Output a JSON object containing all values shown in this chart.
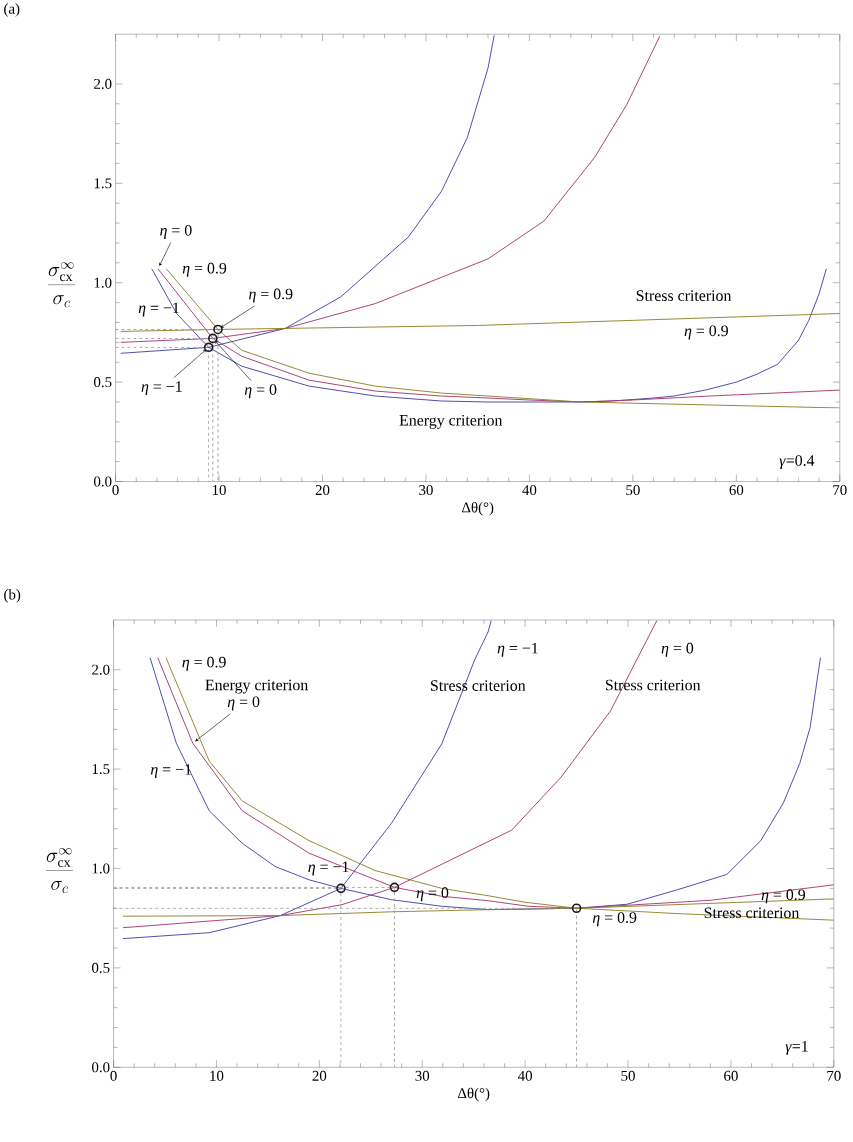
{
  "chart_data": [
    {
      "type": "line",
      "title": "(a)",
      "xlabel": "Δθ(°)",
      "ylabel": "\\frac{\\sigma_{\\mathrm{cx}}^{\\infty}}{\\sigma_{c}}",
      "xlim": [
        0,
        70
      ],
      "ylim": [
        0,
        2.25
      ],
      "xticks": [
        0,
        10,
        20,
        30,
        40,
        50,
        60,
        70
      ],
      "yticks": [
        {
          "value": 0,
          "label": "0.0"
        },
        {
          "value": 0.5,
          "label": "0.5"
        },
        {
          "value": 1,
          "label": "1.0"
        },
        {
          "value": 1.5,
          "label": "1.5"
        },
        {
          "value": 2,
          "label": "2.0"
        }
      ],
      "series": [
        {
          "color": "#3b3ba6",
          "x": [
            3.5,
            5.9,
            9.0,
            12.2,
            18.7,
            25.1,
            31.5,
            36,
            45,
            48,
            52,
            54,
            57,
            60,
            62,
            64,
            66,
            67,
            68,
            68.7
          ],
          "values": [
            1.07,
            0.845,
            0.675,
            0.58,
            0.48,
            0.43,
            0.405,
            0.4,
            0.4,
            0.405,
            0.42,
            0.43,
            0.46,
            0.5,
            0.54,
            0.59,
            0.71,
            0.81,
            0.945,
            1.07
          ]
        },
        {
          "color": "#a3306a",
          "x": [
            4.1,
            9.4,
            12.2,
            18.7,
            25.1,
            31.5,
            36,
            40,
            45,
            50,
            57.4,
            70
          ],
          "values": [
            1.07,
            0.72,
            0.63,
            0.51,
            0.455,
            0.43,
            0.42,
            0.41,
            0.4,
            0.41,
            0.43,
            0.46
          ]
        },
        {
          "color": "#8c7b1f",
          "x": [
            4.9,
            9.9,
            12.2,
            18.7,
            25.1,
            31.5,
            36,
            45,
            57.4,
            70
          ],
          "values": [
            1.07,
            0.765,
            0.66,
            0.545,
            0.48,
            0.445,
            0.43,
            0.4,
            0.385,
            0.37
          ]
        },
        {
          "color": "#3b3ba6",
          "x": [
            0.5,
            9.0,
            16.4,
            21.8,
            28.3,
            31.5,
            34,
            36,
            36.6
          ],
          "values": [
            0.645,
            0.675,
            0.77,
            0.93,
            1.23,
            1.46,
            1.73,
            2.08,
            2.245
          ]
        },
        {
          "color": "#a3306a",
          "x": [
            0.5,
            9.4,
            16.4,
            25.1,
            36,
            41.4,
            46.3,
            49.4,
            52.6
          ],
          "values": [
            0.7,
            0.72,
            0.77,
            0.895,
            1.12,
            1.31,
            1.63,
            1.895,
            2.24
          ]
        },
        {
          "color": "#8c7b1f",
          "x": [
            0.5,
            9.9,
            35,
            70
          ],
          "values": [
            0.755,
            0.765,
            0.785,
            0.845
          ]
        },
        {
          "line_style": "dashed",
          "color": "#999999",
          "x": [
            0,
            9.0,
            9.0
          ],
          "values": [
            0.675,
            0.675,
            0
          ]
        },
        {
          "line_style": "dashed",
          "color": "#999999",
          "x": [
            0,
            9.4,
            9.4
          ],
          "values": [
            0.72,
            0.72,
            0
          ]
        },
        {
          "line_style": "dashed",
          "color": "#999999",
          "x": [
            0,
            9.9,
            9.9
          ],
          "values": [
            0.765,
            0.765,
            0
          ]
        },
        {
          "type": "scatter",
          "marker": "circle",
          "color": "#1a1a1a",
          "x": [
            9.0,
            9.4,
            9.9
          ],
          "values": [
            0.675,
            0.72,
            0.765
          ]
        }
      ],
      "annotations": [
        {
          "text": "*η* = 0",
          "x": 4.1,
          "y": 1.07
        },
        "*η* = 0.9",
        "*η* = −1",
        {
          "text": "*η* = 0.9",
          "x": 9.9,
          "y": 0.765
        },
        {
          "text": "*η* = −1",
          "x": 9.0,
          "y": 0.675
        },
        {
          "text": "*η* = 0",
          "x": 9.4,
          "y": 0.72
        },
        "Energy criterion",
        "Stress criterion",
        "*η* = 0.9",
        "*γ*=0.4"
      ]
    },
    {
      "type": "line",
      "title": "(b)",
      "xlabel": "Δθ(°)",
      "ylabel": "\\frac{\\sigma_{\\mathrm{cx}}^{\\infty}}{\\sigma_{c}}",
      "xlim": [
        0,
        70
      ],
      "ylim": [
        0,
        2.25
      ],
      "xticks": [
        0,
        10,
        20,
        30,
        40,
        50,
        60,
        70
      ],
      "yticks": [
        {
          "value": 0,
          "label": "0.0"
        },
        {
          "value": 0.5,
          "label": "0.5"
        },
        {
          "value": 1,
          "label": "1.0"
        },
        {
          "value": 1.5,
          "label": "1.5"
        },
        {
          "value": 2,
          "label": "2.0"
        }
      ],
      "series": [
        {
          "color": "#3b3ba6",
          "x": [
            3.55,
            6.1,
            9.3,
            12.5,
            15.7,
            19,
            22.1,
            27,
            31.9,
            36.4,
            45,
            49.9,
            54.8,
            59.6,
            62.9,
            65.1,
            66.7,
            67.7,
            68.7
          ],
          "values": [
            2.06,
            1.63,
            1.29,
            1.127,
            1.01,
            0.943,
            0.9,
            0.843,
            0.81,
            0.793,
            0.8,
            0.82,
            0.893,
            0.97,
            1.14,
            1.33,
            1.53,
            1.71,
            2.06
          ]
        },
        {
          "color": "#a3306a",
          "x": [
            4.3,
            7.7,
            12.5,
            19,
            27.3,
            31.9,
            36.4,
            40.3,
            45,
            58,
            70
          ],
          "values": [
            2.06,
            1.63,
            1.29,
            1.077,
            0.905,
            0.86,
            0.838,
            0.81,
            0.8,
            0.84,
            0.918
          ]
        },
        {
          "color": "#8c7b1f",
          "x": [
            5.1,
            9.3,
            12.5,
            19,
            25.4,
            31.9,
            36.4,
            40,
            45,
            54.8,
            70
          ],
          "values": [
            2.06,
            1.54,
            1.34,
            1.14,
            0.99,
            0.9,
            0.863,
            0.83,
            0.8,
            0.773,
            0.74
          ]
        },
        {
          "color": "#3b3ba6",
          "x": [
            0.9,
            9.3,
            16.2,
            22.1,
            27,
            31.9,
            35.1,
            36.4,
            36.7
          ],
          "values": [
            0.647,
            0.677,
            0.763,
            0.9,
            1.227,
            1.627,
            2.05,
            2.19,
            2.247
          ]
        },
        {
          "color": "#a3306a",
          "x": [
            0.9,
            16.2,
            22.2,
            27.3,
            36.4,
            38.7,
            43.5,
            48.3,
            52.8
          ],
          "values": [
            0.702,
            0.763,
            0.818,
            0.905,
            1.135,
            1.193,
            1.46,
            1.793,
            2.247
          ]
        },
        {
          "color": "#8c7b1f",
          "x": [
            0.9,
            16.2,
            27,
            36.4,
            45,
            70
          ],
          "values": [
            0.76,
            0.763,
            0.782,
            0.793,
            0.8,
            0.847
          ]
        },
        {
          "line_style": "dashed",
          "color": "#999999",
          "x": [
            0,
            22.1,
            22.1
          ],
          "values": [
            0.9,
            0.9,
            0
          ]
        },
        {
          "line_style": "dashed",
          "color": "#999999",
          "x": [
            0,
            27.3,
            27.3
          ],
          "values": [
            0.905,
            0.905,
            0
          ]
        },
        {
          "line_style": "dashed",
          "color": "#999999",
          "x": [
            0,
            45,
            45
          ],
          "values": [
            0.8,
            0.8,
            0
          ]
        },
        {
          "type": "scatter",
          "marker": "circle",
          "color": "#1a1a1a",
          "x": [
            22.1,
            27.3,
            45
          ],
          "values": [
            0.9,
            0.905,
            0.8
          ]
        }
      ],
      "annotations": [
        "*η* = 0.9",
        "Energy criterion",
        {
          "text": "*η* = 0",
          "x": 7.7,
          "y": 1.63
        },
        "*η* = −1",
        "*η* = −1",
        "*η* = 0",
        "Stress criterion",
        "Stress criterion",
        "*η* = −1",
        "*η* = 0",
        "*η* = 0.9",
        {
          "text": "*η* = 0.9",
          "x": 65.1,
          "y": 0.86
        },
        {
          "text": "Stress criterion",
          "x": 62.0,
          "y": 0.777
        },
        "*γ*=1"
      ]
    }
  ]
}
